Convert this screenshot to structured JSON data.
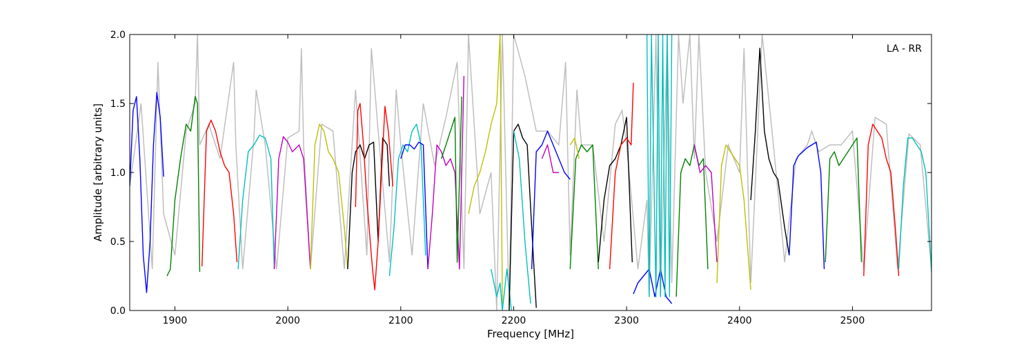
{
  "chart_data": {
    "type": "line",
    "title": "",
    "xlabel": "Frequency [MHz]",
    "ylabel": "Amplitude [arbitrary units]",
    "xlim": [
      1860,
      2570
    ],
    "ylim": [
      0.0,
      2.0
    ],
    "xticks": [
      1900,
      2000,
      2100,
      2200,
      2300,
      2400,
      2500
    ],
    "yticks": [
      0.0,
      0.5,
      1.0,
      1.5,
      2.0
    ],
    "xtick_labels": [
      "1900",
      "2000",
      "2100",
      "2200",
      "2300",
      "2400",
      "2500"
    ],
    "ytick_labels": [
      "0.0",
      "0.5",
      "1.0",
      "1.5",
      "2.0"
    ],
    "annotation": "LA - RR",
    "annotation_placement": "top-right",
    "grid": false,
    "legend": "none",
    "background_series": {
      "color": "#bebebe",
      "x": [
        1860,
        1870,
        1880,
        1885,
        1890,
        1900,
        1910,
        1918,
        1920,
        1922,
        1930,
        1940,
        1952,
        1954,
        1960,
        1970,
        1972,
        1980,
        1990,
        2000,
        2010,
        2012,
        2014,
        2020,
        2030,
        2040,
        2050,
        2060,
        2070,
        2074,
        2080,
        2090,
        2096,
        2100,
        2110,
        2120,
        2130,
        2140,
        2150,
        2156,
        2160,
        2170,
        2180,
        2185,
        2190,
        2196,
        2200,
        2210,
        2220,
        2230,
        2240,
        2246,
        2250,
        2256,
        2260,
        2270,
        2280,
        2290,
        2296,
        2300,
        2310,
        2318,
        2320,
        2326,
        2330,
        2336,
        2340,
        2346,
        2350,
        2356,
        2360,
        2364,
        2370,
        2380,
        2390,
        2400,
        2404,
        2410,
        2420,
        2430,
        2440,
        2450,
        2460,
        2464,
        2470,
        2480,
        2490,
        2500,
        2510,
        2520,
        2530,
        2540,
        2550,
        2560,
        2570
      ],
      "y": [
        0.9,
        1.5,
        0.3,
        1.8,
        0.7,
        0.4,
        1.3,
        1.5,
        2.0,
        1.2,
        1.35,
        1.1,
        1.8,
        1.2,
        0.3,
        1.25,
        1.6,
        1.2,
        0.3,
        1.25,
        1.3,
        1.9,
        1.2,
        0.3,
        1.35,
        1.3,
        0.3,
        1.6,
        0.4,
        1.9,
        1.3,
        0.35,
        1.6,
        1.2,
        0.4,
        1.5,
        1.05,
        1.4,
        1.8,
        0.3,
        2.0,
        0.7,
        1.0,
        0.0,
        2.0,
        0.0,
        2.0,
        1.7,
        1.3,
        1.3,
        1.2,
        1.8,
        0.4,
        1.6,
        1.2,
        1.2,
        0.5,
        1.35,
        1.45,
        1.2,
        0.3,
        0.8,
        0.1,
        2.0,
        0.1,
        2.0,
        0.2,
        2.0,
        1.5,
        2.0,
        1.1,
        2.0,
        1.0,
        0.5,
        1.2,
        1.0,
        1.9,
        0.2,
        2.0,
        1.2,
        0.35,
        1.1,
        1.2,
        1.3,
        1.15,
        1.2,
        1.2,
        1.3,
        0.3,
        1.4,
        1.35,
        0.3,
        1.28,
        1.2,
        0.3
      ]
    },
    "series": [
      {
        "color": "#0000ff",
        "x": [
          1860,
          1863,
          1866,
          1869,
          1872,
          1875,
          1878,
          1881,
          1884,
          1887,
          1890
        ],
        "y": [
          0.9,
          1.45,
          1.55,
          1.1,
          0.4,
          0.13,
          0.5,
          1.2,
          1.58,
          1.4,
          0.97
        ]
      },
      {
        "color": "#008000",
        "x": [
          1893,
          1896,
          1900,
          1905,
          1910,
          1914,
          1918,
          1920,
          1922
        ],
        "y": [
          0.25,
          0.3,
          0.8,
          1.1,
          1.35,
          1.3,
          1.55,
          1.5,
          0.28
        ]
      },
      {
        "color": "#ff0000",
        "x": [
          1924,
          1928,
          1932,
          1936,
          1940,
          1944,
          1948,
          1952,
          1955
        ],
        "y": [
          0.32,
          1.3,
          1.38,
          1.3,
          1.15,
          1.05,
          1.0,
          0.7,
          0.35
        ]
      },
      {
        "color": "#00bfbf",
        "x": [
          1956,
          1960,
          1965,
          1970,
          1975,
          1980,
          1985,
          1988
        ],
        "y": [
          0.3,
          0.8,
          1.15,
          1.2,
          1.27,
          1.25,
          1.1,
          0.3
        ]
      },
      {
        "color": "#bf00bf",
        "x": [
          1988,
          1992,
          1996,
          2000,
          2004,
          2010,
          2014,
          2020
        ],
        "y": [
          0.3,
          1.1,
          1.26,
          1.22,
          1.15,
          1.2,
          1.1,
          0.3
        ]
      },
      {
        "color": "#bfbf00",
        "x": [
          2020,
          2024,
          2028,
          2032,
          2036,
          2040,
          2045,
          2050,
          2053
        ],
        "y": [
          0.3,
          1.2,
          1.35,
          1.3,
          1.15,
          1.1,
          1.0,
          0.6,
          0.3
        ]
      },
      {
        "color": "#000000",
        "x": [
          2053,
          2057,
          2060,
          2064,
          2068,
          2072,
          2076,
          2080,
          2084,
          2088,
          2090
        ],
        "y": [
          0.3,
          1.0,
          1.15,
          1.2,
          1.1,
          1.2,
          1.22,
          0.5,
          1.25,
          1.2,
          0.9
        ]
      },
      {
        "color": "#ff0000",
        "x": [
          2060,
          2062,
          2064,
          2067,
          2070,
          2073,
          2075,
          2077,
          2080,
          2083,
          2086,
          2089,
          2093
        ],
        "y": [
          0.75,
          1.45,
          1.5,
          1.2,
          0.8,
          0.5,
          0.3,
          0.15,
          0.5,
          1.0,
          1.48,
          1.3,
          0.9
        ]
      },
      {
        "color": "#00bfbf",
        "x": [
          2090,
          2094,
          2098,
          2102,
          2106,
          2110,
          2114,
          2118,
          2122
        ],
        "y": [
          0.25,
          0.6,
          1.1,
          1.2,
          1.15,
          1.3,
          1.35,
          1.2,
          0.4
        ]
      },
      {
        "color": "#0000ff",
        "x": [
          2100,
          2104,
          2108,
          2112,
          2116,
          2120,
          2124
        ],
        "y": [
          1.1,
          1.2,
          1.2,
          1.17,
          1.22,
          1.2,
          0.3
        ]
      },
      {
        "color": "#bf00bf",
        "x": [
          2124,
          2128,
          2132,
          2136,
          2140,
          2144,
          2148,
          2152,
          2156
        ],
        "y": [
          0.3,
          0.7,
          1.2,
          1.15,
          1.05,
          1.1,
          1.0,
          0.3,
          1.7
        ]
      },
      {
        "color": "#008000",
        "x": [
          2136,
          2140,
          2144,
          2148,
          2150,
          2154
        ],
        "y": [
          1.1,
          1.2,
          1.3,
          1.4,
          0.35,
          1.55
        ]
      },
      {
        "color": "#bfbf00",
        "x": [
          2160,
          2165,
          2170,
          2175,
          2180,
          2185,
          2188,
          2190
        ],
        "y": [
          0.7,
          0.9,
          1.0,
          1.15,
          1.35,
          1.5,
          2.0,
          0.05
        ]
      },
      {
        "color": "#00bfbf",
        "x": [
          2180,
          2185,
          2188,
          2190,
          2194,
          2198
        ],
        "y": [
          0.3,
          0.1,
          0.2,
          0.0,
          0.3,
          0.0
        ]
      },
      {
        "color": "#000000",
        "x": [
          2196,
          2200,
          2204,
          2208,
          2212,
          2216,
          2220
        ],
        "y": [
          0.0,
          1.3,
          1.35,
          1.25,
          1.2,
          0.6,
          0.02
        ]
      },
      {
        "color": "#00bfbf",
        "x": [
          2200,
          2205,
          2210,
          2215
        ],
        "y": [
          1.3,
          1.1,
          0.5,
          0.05
        ]
      },
      {
        "color": "#0000ff",
        "x": [
          2216,
          2220,
          2225,
          2230,
          2235,
          2240,
          2245,
          2250
        ],
        "y": [
          0.3,
          1.15,
          1.2,
          1.3,
          1.2,
          1.1,
          1.0,
          0.95
        ]
      },
      {
        "color": "#bf00bf",
        "x": [
          2225,
          2230,
          2235,
          2240
        ],
        "y": [
          1.1,
          1.2,
          1.0,
          1.0
        ]
      },
      {
        "color": "#008000",
        "x": [
          2250,
          2255,
          2260,
          2265,
          2270,
          2275
        ],
        "y": [
          0.3,
          1.1,
          1.2,
          1.15,
          1.2,
          0.3
        ]
      },
      {
        "color": "#bfbf00",
        "x": [
          2250,
          2254,
          2258
        ],
        "y": [
          1.2,
          1.25,
          1.1
        ]
      },
      {
        "color": "#000000",
        "x": [
          2275,
          2280,
          2285,
          2290,
          2295,
          2300,
          2305
        ],
        "y": [
          0.35,
          0.8,
          1.05,
          1.1,
          1.2,
          1.4,
          0.35
        ]
      },
      {
        "color": "#ff0000",
        "x": [
          2285,
          2290,
          2295,
          2300,
          2304,
          2306
        ],
        "y": [
          0.3,
          1.0,
          1.2,
          1.25,
          1.2,
          1.65
        ]
      },
      {
        "color": "#0000ff",
        "x": [
          2306,
          2310,
          2315,
          2320,
          2325,
          2330,
          2335,
          2340
        ],
        "y": [
          0.12,
          0.2,
          0.25,
          0.3,
          0.1,
          0.3,
          0.1,
          0.05
        ]
      },
      {
        "color": "#00bfbf",
        "x": [
          2318,
          2320,
          2322,
          2326,
          2328,
          2330,
          2332,
          2334,
          2336,
          2338,
          2340
        ],
        "y": [
          2.0,
          0.1,
          2.0,
          0.1,
          2.0,
          0.1,
          2.0,
          0.1,
          2.0,
          0.1,
          2.0
        ]
      },
      {
        "color": "#008000",
        "x": [
          2344,
          2348,
          2352,
          2356,
          2360,
          2364,
          2368,
          2372
        ],
        "y": [
          0.1,
          1.0,
          1.1,
          1.05,
          1.2,
          1.05,
          1.1,
          0.3
        ]
      },
      {
        "color": "#bf00bf",
        "x": [
          2360,
          2365,
          2370,
          2375,
          2380
        ],
        "y": [
          1.2,
          1.0,
          1.05,
          1.0,
          0.35
        ]
      },
      {
        "color": "#bfbf00",
        "x": [
          2380,
          2384,
          2388,
          2392,
          2396,
          2400,
          2404,
          2410
        ],
        "y": [
          0.2,
          1.05,
          1.2,
          1.15,
          1.1,
          1.05,
          0.8,
          0.15
        ]
      },
      {
        "color": "#000000",
        "x": [
          2410,
          2414,
          2418,
          2422,
          2426,
          2430,
          2434,
          2440,
          2444
        ],
        "y": [
          0.8,
          1.3,
          1.9,
          1.3,
          1.1,
          1.0,
          0.95,
          0.6,
          0.4
        ]
      },
      {
        "color": "#0000ff",
        "x": [
          2444,
          2448,
          2452,
          2456,
          2460,
          2464,
          2468,
          2472,
          2475
        ],
        "y": [
          0.4,
          1.05,
          1.12,
          1.15,
          1.18,
          1.2,
          1.22,
          1.0,
          0.3
        ]
      },
      {
        "color": "#008000",
        "x": [
          2476,
          2480,
          2484,
          2488,
          2492,
          2496,
          2500,
          2504,
          2508
        ],
        "y": [
          0.35,
          1.1,
          1.15,
          1.05,
          1.1,
          1.15,
          1.2,
          1.25,
          0.35
        ]
      },
      {
        "color": "#ff0000",
        "x": [
          2510,
          2514,
          2518,
          2522,
          2526,
          2530,
          2534,
          2538,
          2541
        ],
        "y": [
          0.25,
          1.2,
          1.35,
          1.3,
          1.25,
          1.1,
          1.0,
          0.6,
          0.25
        ]
      },
      {
        "color": "#00bfbf",
        "x": [
          2541,
          2545,
          2549,
          2553,
          2557,
          2561,
          2565,
          2570
        ],
        "y": [
          0.3,
          0.9,
          1.25,
          1.25,
          1.2,
          1.15,
          1.0,
          0.28
        ]
      }
    ]
  }
}
